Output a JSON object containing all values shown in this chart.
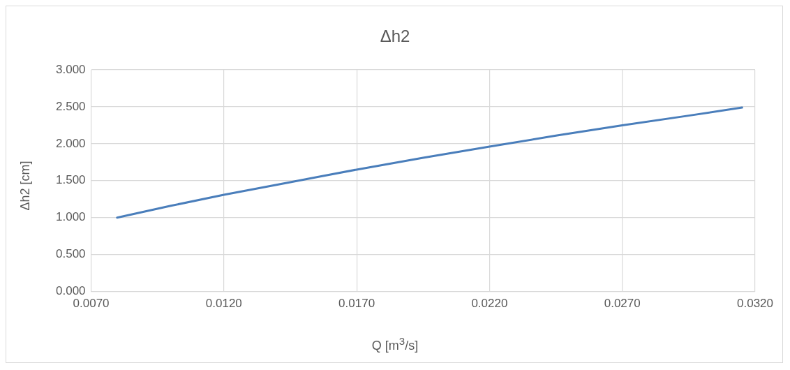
{
  "chart_data": {
    "type": "line",
    "title": "Δh2",
    "xlabel": "Q [m$^{3}$/s]",
    "ylabel": "Δh2 [cm]",
    "series": [
      {
        "color": "#4a7ebb",
        "x": [
          0.00798,
          0.01,
          0.012,
          0.0145,
          0.017,
          0.0195,
          0.022,
          0.0245,
          0.027,
          0.0295,
          0.03151
        ],
        "values": [
          1.0,
          1.16,
          1.31,
          1.48,
          1.65,
          1.81,
          1.96,
          2.11,
          2.25,
          2.38,
          2.49
        ]
      }
    ],
    "xlim": [
      0.007,
      0.032
    ],
    "xticks": [
      {
        "value": 0.007,
        "label": "0.0070"
      },
      {
        "value": 0.012,
        "label": "0.0120"
      },
      {
        "value": 0.017,
        "label": "0.0170"
      },
      {
        "value": 0.022,
        "label": "0.0220"
      },
      {
        "value": 0.027,
        "label": "0.0270"
      },
      {
        "value": 0.032,
        "label": "0.0320"
      }
    ],
    "ylim": [
      0,
      3
    ],
    "yticks": [
      {
        "value": 0,
        "label": "0.000"
      },
      {
        "value": 0.5,
        "label": "0.500"
      },
      {
        "value": 1,
        "label": "1.000"
      },
      {
        "value": 1.5,
        "label": "1.500"
      },
      {
        "value": 2,
        "label": "2.000"
      },
      {
        "value": 2.5,
        "label": "2.500"
      },
      {
        "value": 3,
        "label": "3.000"
      }
    ],
    "grid": true,
    "legend": false,
    "marker": "none",
    "line_style": "solid"
  }
}
